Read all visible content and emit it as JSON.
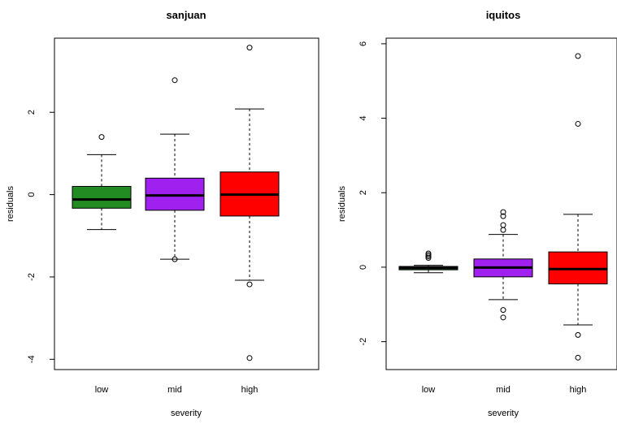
{
  "chart_data": [
    {
      "type": "box",
      "title": "sanjuan",
      "xlabel": "severity",
      "ylabel": "residuals",
      "categories": [
        "low",
        "mid",
        "high"
      ],
      "yticks": [
        -4,
        -2,
        0,
        2
      ],
      "ylim": [
        -4.25,
        3.8
      ],
      "colors": [
        "#228B22",
        "#A020F0",
        "#FF0000"
      ],
      "boxes": [
        {
          "name": "low",
          "min": -0.85,
          "q1": -0.33,
          "median": -0.12,
          "q3": 0.2,
          "max": 0.97,
          "outliers": [
            1.4
          ]
        },
        {
          "name": "mid",
          "min": -1.57,
          "q1": -0.38,
          "median": -0.02,
          "q3": 0.4,
          "max": 1.47,
          "outliers": [
            2.78,
            -1.57
          ]
        },
        {
          "name": "high",
          "min": -2.08,
          "q1": -0.52,
          "median": 0.0,
          "q3": 0.55,
          "max": 2.08,
          "outliers": [
            3.57,
            -2.18,
            -3.97
          ]
        }
      ]
    },
    {
      "type": "box",
      "title": "iquitos",
      "xlabel": "severity",
      "ylabel": "residuals",
      "categories": [
        "low",
        "mid",
        "high"
      ],
      "yticks": [
        -2,
        0,
        2,
        4,
        6
      ],
      "ylim": [
        -2.75,
        6.15
      ],
      "colors": [
        "#228B22",
        "#A020F0",
        "#FF0000"
      ],
      "boxes": [
        {
          "name": "low",
          "min": -0.15,
          "q1": -0.07,
          "median": -0.02,
          "q3": 0.02,
          "max": 0.05,
          "outliers": [
            0.37,
            0.33,
            0.29,
            0.25
          ]
        },
        {
          "name": "mid",
          "min": -0.87,
          "q1": -0.26,
          "median": -0.01,
          "q3": 0.22,
          "max": 0.88,
          "outliers": [
            1.48,
            1.37,
            1.13,
            1.0,
            -1.15,
            -1.35
          ]
        },
        {
          "name": "high",
          "min": -1.55,
          "q1": -0.45,
          "median": -0.05,
          "q3": 0.41,
          "max": 1.42,
          "outliers": [
            5.67,
            3.85,
            -1.82,
            -2.43
          ]
        }
      ]
    }
  ]
}
